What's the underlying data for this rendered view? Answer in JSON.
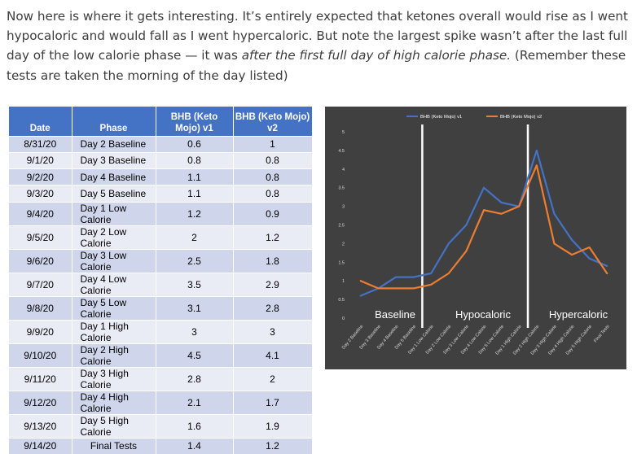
{
  "paragraph": {
    "part1": "Now here is where it gets interesting. It’s entirely expected that ketones overall would rise as I went hypocaloric and would fall as I went hypercaloric. But note the largest spike wasn’t after the last full day of the low calorie phase — it was ",
    "emphasis": "after the first full day of high calorie phase.",
    "part2": " (Remember these tests are taken the morning of the day listed)"
  },
  "table": {
    "headers": [
      "Date",
      "Phase",
      "BHB (Keto Mojo) v1",
      "BHB (Keto Mojo) v2"
    ],
    "rows": [
      [
        "8/31/20",
        "Day 2 Baseline",
        "0.6",
        "1"
      ],
      [
        "9/1/20",
        "Day 3 Baseline",
        "0.8",
        "0.8"
      ],
      [
        "9/2/20",
        "Day 4 Baseline",
        "1.1",
        "0.8"
      ],
      [
        "9/3/20",
        "Day 5 Baseline",
        "1.1",
        "0.8"
      ],
      [
        "9/4/20",
        "Day 1 Low Calorie",
        "1.2",
        "0.9"
      ],
      [
        "9/5/20",
        "Day 2 Low Calorie",
        "2",
        "1.2"
      ],
      [
        "9/6/20",
        "Day 3 Low Calorie",
        "2.5",
        "1.8"
      ],
      [
        "9/7/20",
        "Day 4 Low Calorie",
        "3.5",
        "2.9"
      ],
      [
        "9/8/20",
        "Day 5 Low Calorie",
        "3.1",
        "2.8"
      ],
      [
        "9/9/20",
        "Day 1 High Calorie",
        "3",
        "3"
      ],
      [
        "9/10/20",
        "Day 2 High Calorie",
        "4.5",
        "4.1"
      ],
      [
        "9/11/20",
        "Day 3 High Calorie",
        "2.8",
        "2"
      ],
      [
        "9/12/20",
        "Day 4 High Calorie",
        "2.1",
        "1.7"
      ],
      [
        "9/13/20",
        "Day 5 High Calorie",
        "1.6",
        "1.9"
      ],
      [
        "9/14/20",
        "Final Tests",
        "1.4",
        "1.2"
      ]
    ]
  },
  "chart_data": {
    "type": "line",
    "categories": [
      "Day 2 Baseline",
      "Day 3 Baseline",
      "Day 4 Baseline",
      "Day 5 Baseline",
      "Day 1 Low Calorie",
      "Day 2 Low Calorie",
      "Day 3 Low Calorie",
      "Day 4 Low Calorie",
      "Day 5 Low Calorie",
      "Day 1 High Calorie",
      "Day 2 High Calorie",
      "Day 3 High Calorie",
      "Day 4 High Calorie",
      "Day 5 High Calorie",
      "Final Tests"
    ],
    "series": [
      {
        "name": "BHB (Keto Mojo) v1",
        "color": "#4472c4",
        "values": [
          0.6,
          0.8,
          1.1,
          1.1,
          1.2,
          2,
          2.5,
          3.5,
          3.1,
          3,
          4.5,
          2.8,
          2.1,
          1.6,
          1.4
        ]
      },
      {
        "name": "BHB (Keto Mojo) v2",
        "color": "#ed7d31",
        "values": [
          1,
          0.8,
          0.8,
          0.8,
          0.9,
          1.2,
          1.8,
          2.9,
          2.8,
          3,
          4.1,
          2,
          1.7,
          1.9,
          1.2
        ]
      }
    ],
    "ylim": [
      0,
      5
    ],
    "yticks": [
      "0",
      "0.5",
      "1",
      "1.5",
      "2",
      "2.5",
      "3",
      "3.5",
      "4",
      "4.5",
      "5"
    ],
    "legend_position": "top",
    "grid": false,
    "background": "#404040",
    "phase_labels": [
      "Baseline",
      "Hypocaloric",
      "Hypercaloric"
    ],
    "phase_divider_after": [
      "Day 5 Baseline",
      "Day 1 High Calorie"
    ]
  }
}
